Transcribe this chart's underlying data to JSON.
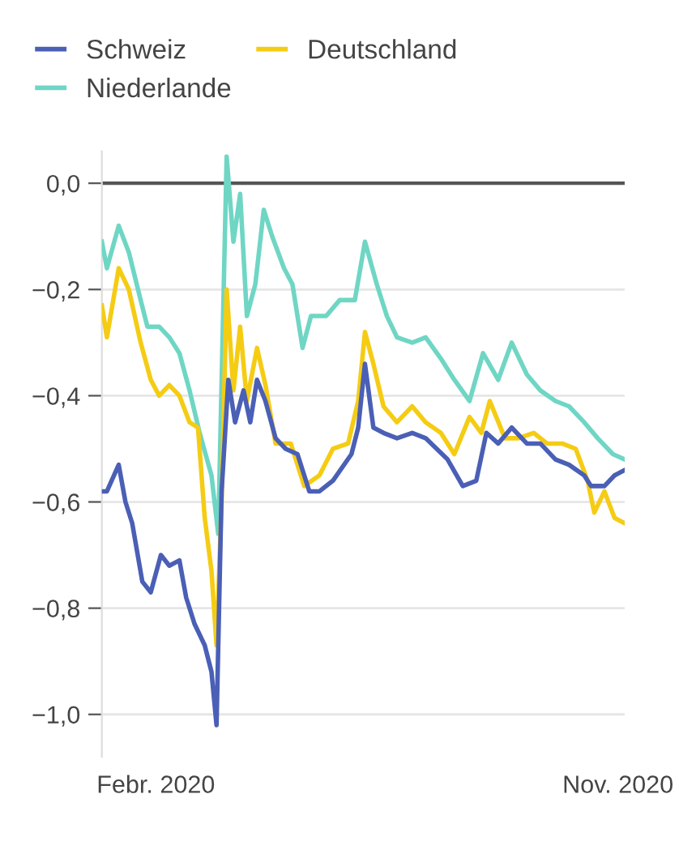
{
  "chart_data": {
    "type": "line",
    "ylim": [
      -1.08,
      0.06
    ],
    "yticks": [
      {
        "value": 0,
        "label": "0,0"
      },
      {
        "value": -0.2,
        "label": "−0,2"
      },
      {
        "value": -0.4,
        "label": "−0,4"
      },
      {
        "value": -0.6,
        "label": "−0,6"
      },
      {
        "value": -0.8,
        "label": "−0,8"
      },
      {
        "value": -1.0,
        "label": "−1,0"
      }
    ],
    "xlim": [
      "2019-12-31",
      "2020-11-05"
    ],
    "xticks": [
      {
        "value": "2020-02-01",
        "label": "Febr. 2020"
      },
      {
        "value": "2020-11-01",
        "label": "Nov. 2020"
      }
    ],
    "grid": "y",
    "legend": "top left",
    "line_style": "solid",
    "ref_lines": [
      {
        "axis": "y",
        "value": 0,
        "color": "#555555"
      }
    ],
    "series": [
      {
        "name": "Schweiz",
        "color": "#4a5fb5",
        "x": [
          "2019-12-31",
          "2020-01-03",
          "2020-01-10",
          "2020-01-14",
          "2020-01-18",
          "2020-01-24",
          "2020-01-29",
          "2020-02-04",
          "2020-02-09",
          "2020-02-15",
          "2020-02-19",
          "2020-02-24",
          "2020-03-01",
          "2020-03-05",
          "2020-03-08",
          "2020-03-11",
          "2020-03-15",
          "2020-03-19",
          "2020-03-24",
          "2020-03-28",
          "2020-04-01",
          "2020-04-06",
          "2020-04-12",
          "2020-04-18",
          "2020-04-25",
          "2020-05-02",
          "2020-05-08",
          "2020-05-16",
          "2020-05-27",
          "2020-05-31",
          "2020-06-04",
          "2020-06-09",
          "2020-06-15",
          "2020-06-23",
          "2020-07-02",
          "2020-07-10",
          "2020-07-23",
          "2020-08-01",
          "2020-08-09",
          "2020-08-15",
          "2020-08-22",
          "2020-08-30",
          "2020-09-08",
          "2020-09-16",
          "2020-09-25",
          "2020-10-03",
          "2020-10-12",
          "2020-10-16",
          "2020-10-24",
          "2020-10-30",
          "2020-11-05"
        ],
        "values": [
          -0.58,
          -0.58,
          -0.53,
          -0.6,
          -0.64,
          -0.75,
          -0.77,
          -0.7,
          -0.72,
          -0.71,
          -0.78,
          -0.83,
          -0.87,
          -0.92,
          -1.02,
          -0.58,
          -0.37,
          -0.45,
          -0.39,
          -0.45,
          -0.37,
          -0.41,
          -0.48,
          -0.5,
          -0.51,
          -0.58,
          -0.58,
          -0.56,
          -0.51,
          -0.46,
          -0.34,
          -0.46,
          -0.47,
          -0.48,
          -0.47,
          -0.48,
          -0.52,
          -0.57,
          -0.56,
          -0.47,
          -0.49,
          -0.46,
          -0.49,
          -0.49,
          -0.52,
          -0.53,
          -0.55,
          -0.57,
          -0.57,
          -0.55,
          -0.54
        ]
      },
      {
        "name": "Deutschland",
        "color": "#f5cc14",
        "x": [
          "2019-12-31",
          "2020-01-03",
          "2020-01-10",
          "2020-01-16",
          "2020-01-23",
          "2020-01-29",
          "2020-02-03",
          "2020-02-09",
          "2020-02-15",
          "2020-02-21",
          "2020-02-26",
          "2020-03-01",
          "2020-03-05",
          "2020-03-08",
          "2020-03-11",
          "2020-03-14",
          "2020-03-18",
          "2020-03-22",
          "2020-03-26",
          "2020-04-01",
          "2020-04-06",
          "2020-04-12",
          "2020-04-21",
          "2020-04-29",
          "2020-05-08",
          "2020-05-16",
          "2020-05-25",
          "2020-05-31",
          "2020-06-04",
          "2020-06-09",
          "2020-06-15",
          "2020-06-23",
          "2020-07-02",
          "2020-07-10",
          "2020-07-19",
          "2020-07-27",
          "2020-08-05",
          "2020-08-12",
          "2020-08-17",
          "2020-08-26",
          "2020-09-03",
          "2020-09-12",
          "2020-09-20",
          "2020-09-29",
          "2020-10-07",
          "2020-10-14",
          "2020-10-18",
          "2020-10-24",
          "2020-10-30",
          "2020-11-05"
        ],
        "values": [
          -0.23,
          -0.29,
          -0.16,
          -0.2,
          -0.3,
          -0.37,
          -0.4,
          -0.38,
          -0.4,
          -0.45,
          -0.46,
          -0.63,
          -0.73,
          -0.87,
          -0.6,
          -0.2,
          -0.39,
          -0.27,
          -0.41,
          -0.31,
          -0.38,
          -0.49,
          -0.49,
          -0.57,
          -0.55,
          -0.5,
          -0.49,
          -0.41,
          -0.28,
          -0.34,
          -0.42,
          -0.45,
          -0.42,
          -0.45,
          -0.47,
          -0.51,
          -0.44,
          -0.47,
          -0.41,
          -0.48,
          -0.48,
          -0.47,
          -0.49,
          -0.49,
          -0.5,
          -0.56,
          -0.62,
          -0.58,
          -0.63,
          -0.64
        ]
      },
      {
        "name": "Niederlande",
        "color": "#6fd6c4",
        "x": [
          "2019-12-31",
          "2020-01-03",
          "2020-01-10",
          "2020-01-16",
          "2020-01-23",
          "2020-01-27",
          "2020-02-03",
          "2020-02-09",
          "2020-02-15",
          "2020-02-21",
          "2020-02-27",
          "2020-03-05",
          "2020-03-09",
          "2020-03-14",
          "2020-03-18",
          "2020-03-22",
          "2020-03-26",
          "2020-03-31",
          "2020-04-05",
          "2020-04-10",
          "2020-04-17",
          "2020-04-22",
          "2020-04-28",
          "2020-05-03",
          "2020-05-12",
          "2020-05-20",
          "2020-05-29",
          "2020-06-04",
          "2020-06-11",
          "2020-06-17",
          "2020-06-23",
          "2020-07-02",
          "2020-07-10",
          "2020-07-19",
          "2020-07-27",
          "2020-08-05",
          "2020-08-13",
          "2020-08-22",
          "2020-08-30",
          "2020-09-08",
          "2020-09-16",
          "2020-09-25",
          "2020-10-03",
          "2020-10-12",
          "2020-10-20",
          "2020-10-29",
          "2020-11-05"
        ],
        "values": [
          -0.11,
          -0.16,
          -0.08,
          -0.13,
          -0.22,
          -0.27,
          -0.27,
          -0.29,
          -0.32,
          -0.39,
          -0.47,
          -0.55,
          -0.66,
          0.05,
          -0.11,
          -0.02,
          -0.25,
          -0.19,
          -0.05,
          -0.1,
          -0.16,
          -0.19,
          -0.31,
          -0.25,
          -0.25,
          -0.22,
          -0.22,
          -0.11,
          -0.19,
          -0.25,
          -0.29,
          -0.3,
          -0.29,
          -0.33,
          -0.37,
          -0.41,
          -0.32,
          -0.37,
          -0.3,
          -0.36,
          -0.39,
          -0.41,
          -0.42,
          -0.45,
          -0.48,
          -0.51,
          -0.52
        ]
      }
    ]
  }
}
